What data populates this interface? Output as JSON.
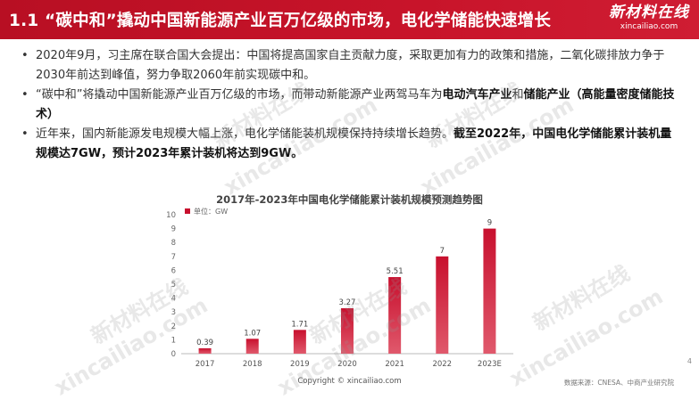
{
  "header": {
    "title": "1.1 “碳中和”撬动中国新能源产业百万亿级的市场，电化学储能快速增长",
    "logo_cn": "新材料在线",
    "logo_en": "xincailiao.com"
  },
  "bullets": [
    {
      "segments": [
        {
          "text": "2020年9月，习主席在联合国大会提出：中国将提高国家自主贡献力度，采取更加有力的政策和措施，二氧化碳排放力争于2030年前达到峰值，努力争取2060年前实现碳中和。",
          "bold": false
        }
      ]
    },
    {
      "segments": [
        {
          "text": "“碳中和”将撬动中国新能源产业百万亿级的市场，而带动新能源产业两驾马车为",
          "bold": false
        },
        {
          "text": "电动汽车产业",
          "bold": true
        },
        {
          "text": "和",
          "bold": false
        },
        {
          "text": "储能产业（高能量密度储能技术）",
          "bold": true
        }
      ]
    },
    {
      "segments": [
        {
          "text": "近年来，国内新能源发电规模大幅上涨，电化学储能装机规模保持持续增长趋势。",
          "bold": false
        },
        {
          "text": "截至2022年，中国电化学储能累计装机量规模达7GW，预计2023年累计装机将达到9GW。",
          "bold": true
        }
      ]
    }
  ],
  "chart_data": {
    "type": "bar",
    "title": "2017年-2023年中国电化学储能累计装机规模预测趋势图",
    "legend": "单位：GW",
    "categories": [
      "2017",
      "2018",
      "2019",
      "2020",
      "2021",
      "2022",
      "2023E"
    ],
    "values": [
      0.39,
      1.07,
      1.71,
      3.27,
      5.51,
      7,
      9
    ],
    "value_labels": [
      "0.39",
      "1.07",
      "1.71",
      "3.27",
      "5.51",
      "7",
      "9"
    ],
    "yticks": [
      "0",
      "1",
      "2",
      "3",
      "4",
      "5",
      "6",
      "7",
      "8",
      "9",
      "10"
    ],
    "ylim": [
      0,
      10
    ],
    "bar_color": "#c8102e",
    "grid": false
  },
  "watermark": {
    "cn": "新材料在线",
    "en": "xincailiao.com"
  },
  "footer": {
    "copyright": "Copyright © xincailiao.com",
    "source": "数据来源：CNESA、中商产业研究院",
    "page": "4"
  }
}
